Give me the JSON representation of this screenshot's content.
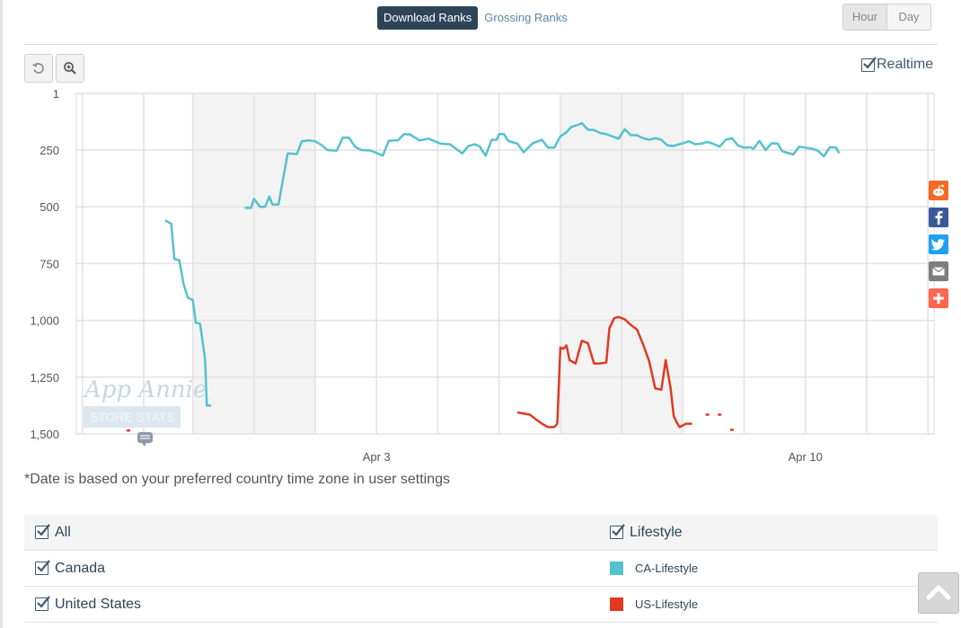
{
  "tabs": [
    {
      "label": "Download Ranks",
      "active": true
    },
    {
      "label": "Grossing Ranks",
      "active": false
    }
  ],
  "time_toggle": [
    "Hour",
    "Day"
  ],
  "toolbar": {
    "reset_icon": "reset-zoom-icon",
    "zoom_icon": "zoom-in-icon"
  },
  "realtime": {
    "label": "Realtime",
    "checked": true
  },
  "watermark": {
    "line1": "App Annie",
    "line2": "STORE STATS"
  },
  "footnote": "*Date is based on your preferred country time zone in user settings",
  "legend": {
    "header_left": "All",
    "header_right": "Lifestyle",
    "rows": [
      {
        "country": "Canada",
        "series": "CA-Lifestyle",
        "color": "#55c1ce"
      },
      {
        "country": "United States",
        "series": "US-Lifestyle",
        "color": "#e03a22"
      }
    ]
  },
  "share_icons": [
    "reddit-icon",
    "facebook-icon",
    "twitter-icon",
    "email-icon",
    "more-icon"
  ],
  "colors": {
    "accent": "#2e4559",
    "link": "#5b86a8",
    "ca": "#55c1ce",
    "us": "#e03a22"
  },
  "chart_data": {
    "type": "line",
    "y_reversed": true,
    "ylim": [
      1,
      1500
    ],
    "yticks": [
      "1",
      "250",
      "500",
      "750",
      "1,000",
      "1,250",
      "1,500"
    ],
    "ytick_values": [
      1,
      250,
      500,
      750,
      1000,
      1250,
      1500
    ],
    "x_label_positions": [
      3,
      10
    ],
    "x_labels": [
      "Apr 3",
      "Apr 10"
    ],
    "xlim": [
      -1.9,
      12.1
    ],
    "weekend_bands": [
      [
        0.0,
        2.0
      ],
      [
        6.0,
        8.0
      ]
    ],
    "grid_days": [
      -1.8,
      -0.8,
      0.0,
      1.0,
      2.0,
      3.0,
      4.0,
      5.0,
      6.0,
      7.0,
      8.0,
      9.0,
      10.0,
      11.0,
      12.0
    ],
    "series": [
      {
        "name": "CA-Lifestyle",
        "color": "#55c1ce",
        "segments": [
          [
            [
              -0.45,
              560
            ],
            [
              -0.35,
              575
            ],
            [
              -0.3,
              730
            ],
            [
              -0.22,
              735
            ],
            [
              -0.15,
              840
            ],
            [
              -0.08,
              900
            ],
            [
              0.0,
              910
            ],
            [
              0.05,
              1010
            ],
            [
              0.12,
              1015
            ],
            [
              0.2,
              1170
            ],
            [
              0.23,
              1375
            ],
            [
              0.3,
              1375
            ]
          ],
          [
            [
              0.85,
              505
            ],
            [
              0.95,
              505
            ],
            [
              1.0,
              465
            ],
            [
              1.1,
              500
            ],
            [
              1.18,
              500
            ],
            [
              1.25,
              455
            ],
            [
              1.3,
              490
            ],
            [
              1.4,
              490
            ],
            [
              1.55,
              265
            ],
            [
              1.7,
              268
            ],
            [
              1.78,
              212
            ],
            [
              1.9,
              208
            ],
            [
              2.0,
              212
            ],
            [
              2.1,
              228
            ],
            [
              2.2,
              250
            ],
            [
              2.35,
              253
            ],
            [
              2.45,
              195
            ],
            [
              2.55,
              196
            ],
            [
              2.65,
              236
            ],
            [
              2.75,
              250
            ],
            [
              2.9,
              252
            ],
            [
              3.0,
              263
            ],
            [
              3.1,
              275
            ],
            [
              3.2,
              210
            ],
            [
              3.35,
              207
            ],
            [
              3.45,
              180
            ],
            [
              3.55,
              182
            ],
            [
              3.7,
              208
            ],
            [
              3.85,
              200
            ],
            [
              3.95,
              212
            ],
            [
              4.05,
              222
            ],
            [
              4.2,
              225
            ],
            [
              4.3,
              245
            ],
            [
              4.4,
              265
            ],
            [
              4.5,
              232
            ],
            [
              4.6,
              225
            ],
            [
              4.68,
              233
            ],
            [
              4.78,
              275
            ],
            [
              4.88,
              205
            ],
            [
              4.96,
              205
            ],
            [
              5.0,
              180
            ],
            [
              5.08,
              180
            ],
            [
              5.15,
              210
            ],
            [
              5.3,
              222
            ],
            [
              5.4,
              260
            ],
            [
              5.55,
              220
            ],
            [
              5.7,
              205
            ],
            [
              5.8,
              240
            ],
            [
              5.9,
              240
            ],
            [
              6.0,
              190
            ],
            [
              6.1,
              172
            ],
            [
              6.18,
              148
            ],
            [
              6.26,
              142
            ],
            [
              6.35,
              132
            ],
            [
              6.45,
              160
            ],
            [
              6.55,
              162
            ],
            [
              6.65,
              175
            ],
            [
              6.75,
              180
            ],
            [
              6.85,
              190
            ],
            [
              6.95,
              200
            ],
            [
              7.05,
              158
            ],
            [
              7.15,
              185
            ],
            [
              7.25,
              185
            ],
            [
              7.35,
              198
            ],
            [
              7.45,
              205
            ],
            [
              7.55,
              198
            ],
            [
              7.65,
              205
            ],
            [
              7.75,
              230
            ],
            [
              7.85,
              232
            ],
            [
              8.0,
              220
            ],
            [
              8.1,
              212
            ],
            [
              8.2,
              225
            ],
            [
              8.3,
              222
            ],
            [
              8.4,
              215
            ],
            [
              8.5,
              223
            ],
            [
              8.6,
              235
            ],
            [
              8.7,
              205
            ],
            [
              8.8,
              198
            ],
            [
              8.9,
              230
            ],
            [
              9.0,
              240
            ],
            [
              9.1,
              238
            ],
            [
              9.15,
              245
            ],
            [
              9.25,
              210
            ],
            [
              9.35,
              250
            ],
            [
              9.45,
              220
            ],
            [
              9.55,
              222
            ],
            [
              9.62,
              255
            ],
            [
              9.7,
              262
            ],
            [
              9.8,
              270
            ],
            [
              9.9,
              235
            ],
            [
              10.0,
              240
            ],
            [
              10.1,
              244
            ],
            [
              10.2,
              252
            ],
            [
              10.3,
              278
            ],
            [
              10.4,
              238
            ],
            [
              10.5,
              240
            ],
            [
              10.55,
              264
            ]
          ]
        ]
      },
      {
        "name": "US-Lifestyle",
        "color": "#e03a22",
        "segments": [
          [
            [
              -1.05,
              1485
            ]
          ],
          [
            [
              5.3,
              1405
            ],
            [
              5.5,
              1415
            ],
            [
              5.6,
              1435
            ],
            [
              5.7,
              1455
            ],
            [
              5.8,
              1470
            ],
            [
              5.9,
              1470
            ],
            [
              5.95,
              1455
            ],
            [
              6.0,
              1120
            ],
            [
              6.05,
              1125
            ],
            [
              6.1,
              1110
            ],
            [
              6.15,
              1175
            ],
            [
              6.25,
              1190
            ],
            [
              6.35,
              1090
            ],
            [
              6.45,
              1100
            ],
            [
              6.55,
              1190
            ],
            [
              6.65,
              1190
            ],
            [
              6.75,
              1185
            ],
            [
              6.8,
              1035
            ],
            [
              6.88,
              990
            ],
            [
              6.95,
              985
            ],
            [
              7.05,
              995
            ],
            [
              7.15,
              1020
            ],
            [
              7.25,
              1040
            ],
            [
              7.35,
              1105
            ],
            [
              7.45,
              1180
            ],
            [
              7.55,
              1300
            ],
            [
              7.65,
              1305
            ],
            [
              7.72,
              1175
            ],
            [
              7.8,
              1300
            ],
            [
              7.85,
              1420
            ],
            [
              7.9,
              1450
            ],
            [
              7.95,
              1470
            ],
            [
              8.05,
              1455
            ],
            [
              8.15,
              1455
            ]
          ],
          [
            [
              8.4,
              1415
            ]
          ],
          [
            [
              8.6,
              1415
            ]
          ],
          [
            [
              8.8,
              1482
            ]
          ]
        ]
      }
    ]
  }
}
